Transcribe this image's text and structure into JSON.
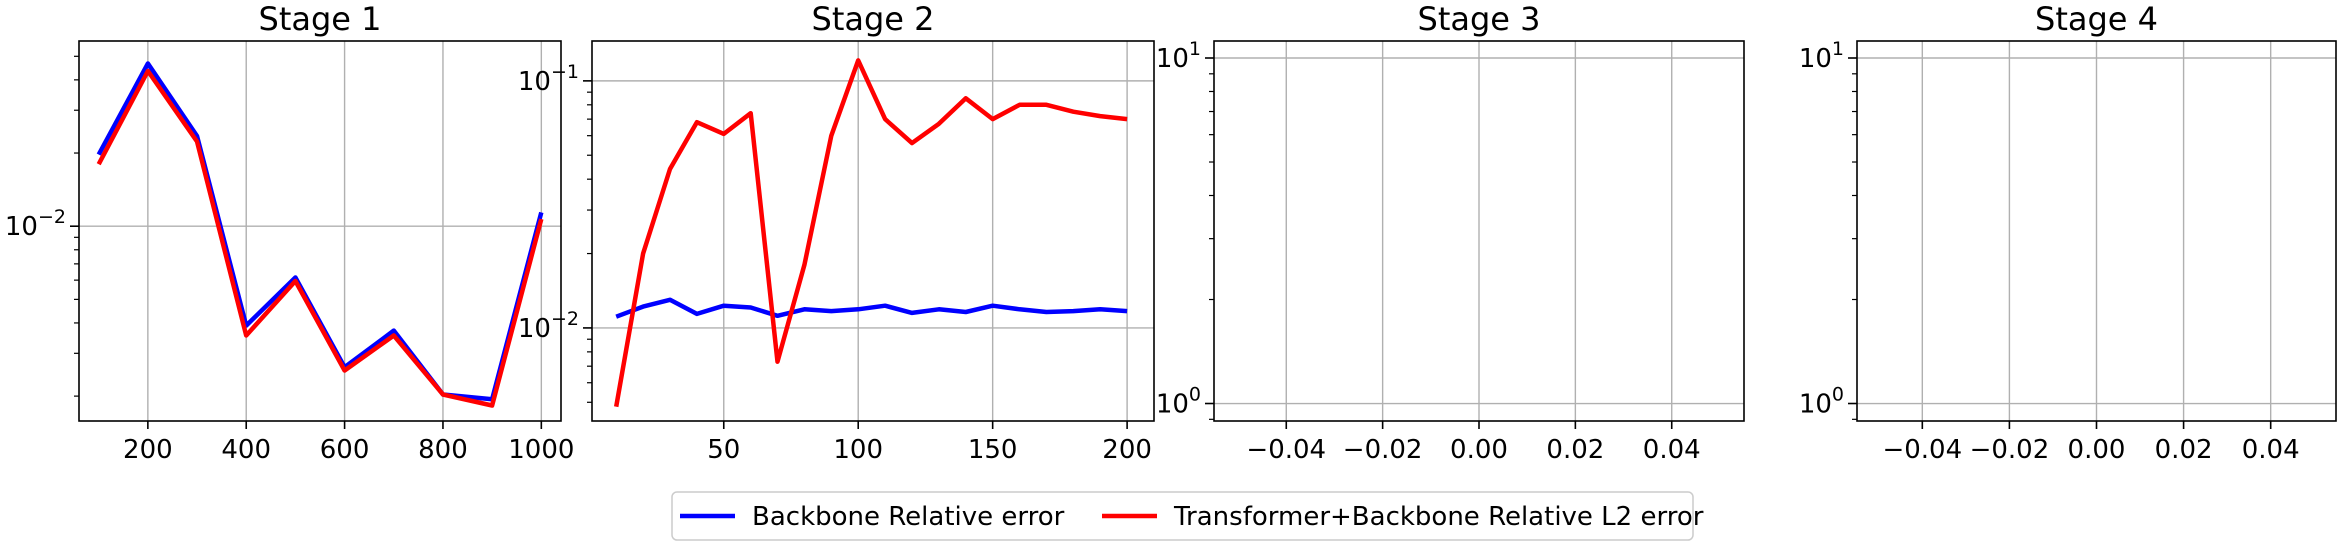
{
  "chart_data": [
    {
      "type": "line",
      "title": "Stage 1",
      "yscale": "log",
      "xlim": [
        60,
        1040
      ],
      "ylim": [
        0.00158,
        0.0578
      ],
      "grid": true,
      "xticks": [
        200,
        400,
        600,
        800,
        1000
      ],
      "xtick_labels": [
        "200",
        "400",
        "600",
        "800",
        "1000"
      ],
      "yticks": [
        0.01
      ],
      "ytick_labels": [
        {
          "base": "10",
          "exp": "−2"
        }
      ],
      "series": [
        {
          "key": "backbone",
          "color": "#0000ff",
          "x": [
            100,
            200,
            300,
            400,
            500,
            600,
            700,
            800,
            900,
            1000
          ],
          "y": [
            0.0197,
            0.0467,
            0.0235,
            0.0039,
            0.00615,
            0.00263,
            0.00372,
            0.00203,
            0.00194,
            0.0114
          ]
        },
        {
          "key": "transformer",
          "color": "#ff0000",
          "x": [
            100,
            200,
            300,
            400,
            500,
            600,
            700,
            800,
            900,
            1000
          ],
          "y": [
            0.018,
            0.0435,
            0.0223,
            0.00355,
            0.00595,
            0.00255,
            0.00355,
            0.00203,
            0.00183,
            0.0107
          ]
        }
      ]
    },
    {
      "type": "line",
      "title": "Stage 2",
      "yscale": "log",
      "xlim": [
        1,
        210
      ],
      "ylim": [
        0.0042,
        0.145
      ],
      "grid": true,
      "xticks": [
        50,
        100,
        150,
        200
      ],
      "xtick_labels": [
        "50",
        "100",
        "150",
        "200"
      ],
      "yticks": [
        0.01,
        0.1
      ],
      "ytick_labels": [
        {
          "base": "10",
          "exp": "−2"
        },
        {
          "base": "10",
          "exp": "−1"
        }
      ],
      "series": [
        {
          "key": "backbone",
          "color": "#0000ff",
          "x": [
            10,
            20,
            30,
            40,
            50,
            60,
            70,
            80,
            90,
            100,
            110,
            120,
            130,
            140,
            150,
            160,
            170,
            180,
            190,
            200
          ],
          "y": [
            0.0111,
            0.0122,
            0.013,
            0.0114,
            0.0123,
            0.0121,
            0.0112,
            0.0119,
            0.0117,
            0.0119,
            0.0123,
            0.0115,
            0.0119,
            0.0116,
            0.0123,
            0.0119,
            0.0116,
            0.0117,
            0.0119,
            0.0117
          ]
        },
        {
          "key": "transformer",
          "color": "#ff0000",
          "x": [
            10,
            20,
            30,
            40,
            50,
            60,
            70,
            80,
            90,
            100,
            110,
            120,
            130,
            140,
            150,
            160,
            170,
            180,
            190,
            200
          ],
          "y": [
            0.0048,
            0.02,
            0.044,
            0.068,
            0.061,
            0.074,
            0.0073,
            0.018,
            0.06,
            0.121,
            0.07,
            0.056,
            0.067,
            0.085,
            0.07,
            0.08,
            0.08,
            0.075,
            0.072,
            0.07
          ]
        }
      ]
    },
    {
      "type": "line",
      "title": "Stage 3",
      "yscale": "log",
      "xlim": [
        -0.055,
        0.055
      ],
      "ylim": [
        0.89,
        11.2
      ],
      "grid": true,
      "xticks": [
        -0.04,
        -0.02,
        0.0,
        0.02,
        0.04
      ],
      "xtick_labels": [
        "−0.04",
        "−0.02",
        "0.00",
        "0.02",
        "0.04"
      ],
      "yticks": [
        1,
        10
      ],
      "ytick_labels": [
        {
          "base": "10",
          "exp": "0"
        },
        {
          "base": "10",
          "exp": "1"
        }
      ],
      "series": []
    },
    {
      "type": "line",
      "title": "Stage 4",
      "yscale": "log",
      "xlim": [
        -0.055,
        0.055
      ],
      "ylim": [
        0.89,
        11.2
      ],
      "grid": true,
      "xticks": [
        -0.04,
        -0.02,
        0.0,
        0.02,
        0.04
      ],
      "xtick_labels": [
        "−0.04",
        "−0.02",
        "0.00",
        "0.02",
        "0.04"
      ],
      "yticks": [
        1,
        10
      ],
      "ytick_labels": [
        {
          "base": "10",
          "exp": "0"
        },
        {
          "base": "10",
          "exp": "1"
        }
      ],
      "series": []
    }
  ],
  "legend": {
    "placement": "bottom-center",
    "entries": [
      {
        "key": "backbone",
        "label": "Backbone Relative error",
        "color": "#0000ff"
      },
      {
        "key": "transformer",
        "label": "Transformer+Backbone Relative L2 error",
        "color": "#ff0000"
      }
    ]
  }
}
